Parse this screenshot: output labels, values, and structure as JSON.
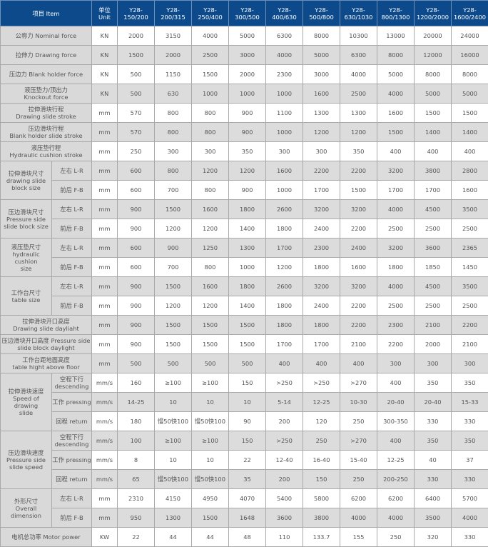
{
  "colors": {
    "header_bg": "#0d4a8c",
    "label_bg": "#d9d9d9",
    "alt_row_bg": "#dcdcdc",
    "border": "#a9a9a9"
  },
  "header": {
    "item": "项目 Item",
    "unit": "单位\nUnit",
    "models": [
      "Y28-\n150/200",
      "Y28-\n200/315",
      "Y28-\n250/400",
      "Y28-\n300/500",
      "Y28-\n400/630",
      "Y28-\n500/800",
      "Y28-\n630/1030",
      "Y28-\n800/1300",
      "Y28-\n1200/2000",
      "Y28-\n1600/2400"
    ]
  },
  "rows": [
    {
      "label": "公称力 Nominal force",
      "unit": "KN",
      "values": [
        "2000",
        "3150",
        "4000",
        "5000",
        "6300",
        "8000",
        "10300",
        "13000",
        "20000",
        "24000"
      ]
    },
    {
      "label": "拉伸力 Drawing force",
      "unit": "KN",
      "values": [
        "1500",
        "2000",
        "2500",
        "3000",
        "4000",
        "5000",
        "6300",
        "8000",
        "12000",
        "16000"
      ]
    },
    {
      "label": "压边力 Blank holder force",
      "unit": "KN",
      "values": [
        "500",
        "1150",
        "1500",
        "2000",
        "2300",
        "3000",
        "4000",
        "5000",
        "8000",
        "8000"
      ]
    },
    {
      "label": "液压垫力/顶出力\nKnockout force",
      "unit": "KN",
      "values": [
        "500",
        "630",
        "1000",
        "1000",
        "1000",
        "1600",
        "2500",
        "4000",
        "5000",
        "5000"
      ]
    },
    {
      "label": "拉伸滑块行程\nDrawing slide stroke",
      "unit": "mm",
      "values": [
        "570",
        "800",
        "800",
        "900",
        "1100",
        "1300",
        "1300",
        "1600",
        "1500",
        "1500"
      ]
    },
    {
      "label": "压边滑块行程\nBlank holder slide stroke",
      "unit": "mm",
      "values": [
        "570",
        "800",
        "800",
        "900",
        "1000",
        "1200",
        "1200",
        "1500",
        "1400",
        "1400"
      ]
    },
    {
      "label": "液压垫行程\nHydraulic cushion stroke",
      "unit": "mm",
      "values": [
        "250",
        "300",
        "300",
        "350",
        "300",
        "300",
        "350",
        "400",
        "400",
        "400"
      ]
    },
    {
      "group": "拉伸滑块尺寸\ndrawing slide\nblock size",
      "items": [
        {
          "sub": "左右 L-R",
          "unit": "mm",
          "values": [
            "600",
            "800",
            "1200",
            "1200",
            "1600",
            "2200",
            "2200",
            "3200",
            "3800",
            "2800"
          ]
        },
        {
          "sub": "前后 F-B",
          "unit": "mm",
          "values": [
            "600",
            "700",
            "800",
            "900",
            "1000",
            "1700",
            "1500",
            "1700",
            "1700",
            "1600"
          ]
        }
      ]
    },
    {
      "group": "压边滑块尺寸\nPressure side\nslide block size",
      "items": [
        {
          "sub": "左右 L-R",
          "unit": "mm",
          "values": [
            "900",
            "1500",
            "1600",
            "1800",
            "2600",
            "3200",
            "3200",
            "4000",
            "4500",
            "3500"
          ]
        },
        {
          "sub": "前后 F-B",
          "unit": "mm",
          "values": [
            "900",
            "1200",
            "1200",
            "1400",
            "1800",
            "2400",
            "2200",
            "2500",
            "2500",
            "2500"
          ]
        }
      ]
    },
    {
      "group": "液压垫尺寸\nhydraulic cushion\nsize",
      "items": [
        {
          "sub": "左右 L-R",
          "unit": "mm",
          "values": [
            "600",
            "900",
            "1250",
            "1300",
            "1700",
            "2300",
            "2400",
            "3200",
            "3600",
            "2365"
          ]
        },
        {
          "sub": "前后 F-B",
          "unit": "mm",
          "values": [
            "600",
            "700",
            "800",
            "1000",
            "1200",
            "1800",
            "1600",
            "1800",
            "1850",
            "1450"
          ]
        }
      ]
    },
    {
      "group": "工作台尺寸\ntable size",
      "items": [
        {
          "sub": "左右 L-R",
          "unit": "mm",
          "values": [
            "900",
            "1500",
            "1600",
            "1800",
            "2600",
            "3200",
            "3200",
            "4000",
            "4500",
            "3500"
          ]
        },
        {
          "sub": "前后 F-B",
          "unit": "mm",
          "values": [
            "900",
            "1200",
            "1200",
            "1400",
            "1800",
            "2400",
            "2200",
            "2500",
            "2500",
            "2500"
          ]
        }
      ]
    },
    {
      "label": "拉伸滑块开口高度\nDrawing slide dayliaht",
      "unit": "mm",
      "values": [
        "900",
        "1500",
        "1500",
        "1500",
        "1800",
        "1800",
        "2200",
        "2300",
        "2100",
        "2200"
      ]
    },
    {
      "label": "压边滑块开口高度 Pressure side\nslide block daylight",
      "unit": "mm",
      "values": [
        "900",
        "1500",
        "1500",
        "1500",
        "1700",
        "1700",
        "2100",
        "2200",
        "2000",
        "2100"
      ]
    },
    {
      "label": "工作台距地面高度\ntable hight above floor",
      "unit": "mm",
      "values": [
        "500",
        "500",
        "500",
        "500",
        "400",
        "400",
        "400",
        "300",
        "300",
        "300"
      ]
    },
    {
      "group": "拉伸滑块速度\nSpeed of drawing\nslide",
      "items": [
        {
          "sub": "空程下行\ndescending",
          "unit": "mm/s",
          "values": [
            "160",
            "≥100",
            "≥100",
            "150",
            ">250",
            ">250",
            ">270",
            "400",
            "350",
            "350"
          ]
        },
        {
          "sub": "工作 pressing",
          "unit": "mm/s",
          "values": [
            "14-25",
            "10",
            "10",
            "10",
            "5-14",
            "12-25",
            "10-30",
            "20-40",
            "20-40",
            "15-33"
          ]
        },
        {
          "sub": "回程 return",
          "unit": "mm/s",
          "values": [
            "180",
            "慢50快100",
            "慢50快100",
            "90",
            "200",
            "120",
            "250",
            "300-350",
            "330",
            "330"
          ]
        }
      ]
    },
    {
      "group": "压边滑块速度\nPressure side\nslide  speed",
      "items": [
        {
          "sub": "空程下行\ndescending",
          "unit": "mm/s",
          "values": [
            "100",
            "≥100",
            "≥100",
            "150",
            ">250",
            "250",
            ">270",
            "400",
            "350",
            "350"
          ]
        },
        {
          "sub": "工作 pressing",
          "unit": "mm/s",
          "values": [
            "8",
            "10",
            "10",
            "22",
            "12-40",
            "16-40",
            "15-40",
            "12-25",
            "40",
            "37"
          ]
        },
        {
          "sub": "回程 return",
          "unit": "mm/s",
          "values": [
            "65",
            "慢50快100",
            "慢50快100",
            "35",
            "200",
            "150",
            "250",
            "200-250",
            "330",
            "330"
          ]
        }
      ]
    },
    {
      "group": "外形尺寸\nOverall\ndimension",
      "items": [
        {
          "sub": "左右  L-R",
          "unit": "mm",
          "values": [
            "2310",
            "4150",
            "4950",
            "4070",
            "5400",
            "5800",
            "6200",
            "6200",
            "6400",
            "5700"
          ]
        },
        {
          "sub": "前后 F-B",
          "unit": "mm",
          "values": [
            "950",
            "1300",
            "1500",
            "1648",
            "3600",
            "3800",
            "4000",
            "4000",
            "3500",
            "4000"
          ]
        }
      ]
    },
    {
      "label": "电机总功率 Motor power",
      "unit": "KW",
      "values": [
        "22",
        "44",
        "44",
        "48",
        "110",
        "133.7",
        "155",
        "250",
        "320",
        "330"
      ]
    }
  ]
}
